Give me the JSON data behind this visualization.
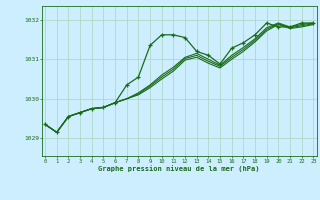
{
  "title": "Graphe pression niveau de la mer (hPa)",
  "bg_color": "#cceeff",
  "line_color": "#1a6b1a",
  "grid_color": "#b0d8c8",
  "x_ticks": [
    0,
    1,
    2,
    3,
    4,
    5,
    6,
    7,
    8,
    9,
    10,
    11,
    12,
    13,
    14,
    15,
    16,
    17,
    18,
    19,
    20,
    21,
    22,
    23
  ],
  "ylim": [
    1028.55,
    1032.35
  ],
  "y_ticks": [
    1029,
    1030,
    1031,
    1032
  ],
  "lines": [
    {
      "x": [
        0,
        1,
        2,
        3,
        4,
        5,
        6,
        7,
        8,
        9,
        10,
        11,
        12,
        13,
        14,
        15,
        16,
        17,
        18,
        19,
        20,
        21,
        22,
        23
      ],
      "y": [
        1029.35,
        1029.15,
        1029.55,
        1029.65,
        1029.75,
        1029.78,
        1029.9,
        1030.35,
        1030.55,
        1031.35,
        1031.62,
        1031.62,
        1031.55,
        1031.2,
        1031.1,
        1030.88,
        1031.28,
        1031.42,
        1031.62,
        1031.92,
        1031.82,
        1031.82,
        1031.92,
        1031.92
      ],
      "marker": true
    },
    {
      "x": [
        0,
        1,
        2,
        3,
        4,
        5,
        6,
        7,
        8,
        9,
        10,
        11,
        12,
        13,
        14,
        15,
        16,
        17,
        18,
        19,
        20,
        21,
        22,
        23
      ],
      "y": [
        1029.35,
        1029.15,
        1029.55,
        1029.65,
        1029.75,
        1029.78,
        1029.9,
        1030.0,
        1030.15,
        1030.35,
        1030.6,
        1030.8,
        1031.05,
        1031.15,
        1031.0,
        1030.85,
        1031.1,
        1031.3,
        1031.52,
        1031.8,
        1031.92,
        1031.82,
        1031.88,
        1031.92
      ],
      "marker": false
    },
    {
      "x": [
        0,
        1,
        2,
        3,
        4,
        5,
        6,
        7,
        8,
        9,
        10,
        11,
        12,
        13,
        14,
        15,
        16,
        17,
        18,
        19,
        20,
        21,
        22,
        23
      ],
      "y": [
        1029.35,
        1029.15,
        1029.55,
        1029.65,
        1029.75,
        1029.78,
        1029.9,
        1030.0,
        1030.12,
        1030.32,
        1030.55,
        1030.75,
        1031.02,
        1031.1,
        1030.95,
        1030.82,
        1031.05,
        1031.25,
        1031.48,
        1031.76,
        1031.9,
        1031.8,
        1031.85,
        1031.9
      ],
      "marker": false
    },
    {
      "x": [
        0,
        1,
        2,
        3,
        4,
        5,
        6,
        7,
        8,
        9,
        10,
        11,
        12,
        13,
        14,
        15,
        16,
        17,
        18,
        19,
        20,
        21,
        22,
        23
      ],
      "y": [
        1029.35,
        1029.15,
        1029.55,
        1029.65,
        1029.75,
        1029.78,
        1029.9,
        1030.0,
        1030.1,
        1030.28,
        1030.5,
        1030.7,
        1030.98,
        1031.05,
        1030.9,
        1030.78,
        1031.0,
        1031.2,
        1031.44,
        1031.72,
        1031.88,
        1031.78,
        1031.82,
        1031.88
      ],
      "marker": false
    }
  ]
}
